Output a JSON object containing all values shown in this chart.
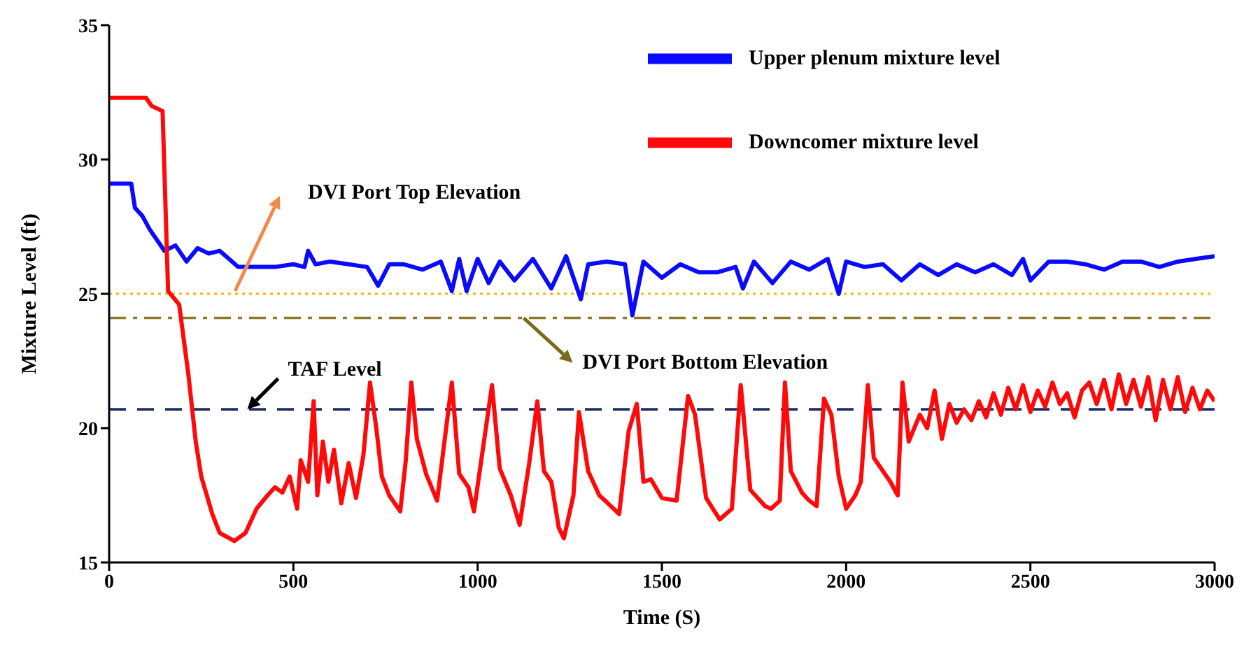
{
  "chart_data": {
    "type": "line",
    "xlabel": "Time (S)",
    "ylabel": "Mixture Level (ft)",
    "xlim": [
      0,
      3000
    ],
    "xticks": [
      0,
      500,
      1000,
      1500,
      2000,
      2500,
      3000
    ],
    "ylim": [
      15,
      35
    ],
    "yticks": [
      15,
      20,
      25,
      30,
      35
    ],
    "grid": false,
    "legend": "top right",
    "marker": "none",
    "line_style": "solid",
    "series": [
      {
        "name": "Upper plenum mixture level",
        "color": "#0a0aff",
        "x": [
          0,
          60,
          70,
          90,
          110,
          150,
          180,
          210,
          240,
          270,
          300,
          350,
          400,
          450,
          500,
          530,
          540,
          560,
          600,
          650,
          700,
          730,
          760,
          800,
          850,
          900,
          930,
          950,
          970,
          1000,
          1030,
          1060,
          1100,
          1150,
          1200,
          1240,
          1280,
          1300,
          1350,
          1400,
          1420,
          1450,
          1500,
          1550,
          1600,
          1650,
          1700,
          1720,
          1750,
          1800,
          1850,
          1900,
          1950,
          1980,
          2000,
          2050,
          2100,
          2150,
          2200,
          2250,
          2300,
          2350,
          2400,
          2450,
          2480,
          2500,
          2550,
          2600,
          2650,
          2700,
          2750,
          2800,
          2850,
          2900,
          2950,
          3000
        ],
        "values": [
          29.1,
          29.1,
          28.2,
          27.9,
          27.4,
          26.6,
          26.8,
          26.2,
          26.7,
          26.5,
          26.6,
          26.0,
          26.0,
          26.0,
          26.1,
          26.0,
          26.6,
          26.1,
          26.2,
          26.1,
          26.0,
          25.3,
          26.1,
          26.1,
          25.9,
          26.2,
          25.1,
          26.3,
          25.1,
          26.3,
          25.4,
          26.2,
          25.5,
          26.3,
          25.2,
          26.4,
          24.8,
          26.1,
          26.2,
          26.1,
          24.2,
          26.2,
          25.6,
          26.1,
          25.8,
          25.8,
          26.0,
          25.2,
          26.2,
          25.4,
          26.2,
          25.9,
          26.3,
          25.0,
          26.2,
          26.0,
          26.1,
          25.5,
          26.1,
          25.7,
          26.1,
          25.8,
          26.1,
          25.7,
          26.3,
          25.5,
          26.2,
          26.2,
          26.1,
          25.9,
          26.2,
          26.2,
          26.0,
          26.2,
          26.3,
          26.4
        ]
      },
      {
        "name": "Downcomer mixture level",
        "color": "#ff0a0a",
        "x": [
          0,
          100,
          115,
          145,
          160,
          190,
          215,
          235,
          250,
          280,
          300,
          340,
          370,
          400,
          430,
          450,
          470,
          490,
          510,
          520,
          540,
          555,
          565,
          580,
          595,
          610,
          630,
          650,
          670,
          690,
          708,
          725,
          740,
          760,
          790,
          805,
          820,
          835,
          860,
          890,
          930,
          950,
          975,
          990,
          1039,
          1060,
          1090,
          1114,
          1140,
          1162,
          1180,
          1200,
          1220,
          1234,
          1260,
          1275,
          1300,
          1330,
          1346,
          1384,
          1410,
          1432,
          1450,
          1470,
          1500,
          1540,
          1571,
          1590,
          1620,
          1657,
          1690,
          1714,
          1740,
          1780,
          1796,
          1820,
          1834,
          1850,
          1880,
          1900,
          1920,
          1940,
          1960,
          1980,
          2000,
          2025,
          2040,
          2059,
          2075,
          2100,
          2120,
          2140,
          2153,
          2170,
          2200,
          2220,
          2240,
          2260,
          2280,
          2300,
          2320,
          2340,
          2360,
          2380,
          2400,
          2420,
          2440,
          2460,
          2480,
          2500,
          2520,
          2540,
          2560,
          2580,
          2600,
          2620,
          2640,
          2660,
          2680,
          2700,
          2720,
          2740,
          2760,
          2780,
          2800,
          2820,
          2840,
          2860,
          2880,
          2900,
          2920,
          2940,
          2960,
          2980,
          3000
        ],
        "values": [
          32.3,
          32.3,
          32.0,
          31.8,
          25.1,
          24.6,
          22.0,
          19.5,
          18.2,
          16.8,
          16.1,
          15.8,
          16.1,
          17.0,
          17.5,
          17.8,
          17.6,
          18.2,
          17.0,
          18.8,
          18.0,
          21.0,
          17.5,
          19.5,
          18.0,
          19.2,
          17.2,
          18.7,
          17.4,
          19.0,
          21.7,
          20.0,
          18.2,
          17.5,
          16.9,
          18.8,
          21.7,
          19.6,
          18.3,
          17.3,
          21.7,
          18.3,
          17.8,
          16.9,
          21.6,
          18.5,
          17.5,
          16.4,
          18.7,
          21.0,
          18.4,
          18.0,
          16.3,
          15.9,
          17.5,
          20.6,
          18.4,
          17.5,
          17.3,
          16.8,
          19.9,
          20.9,
          18.0,
          18.1,
          17.4,
          17.3,
          21.2,
          20.5,
          17.4,
          16.6,
          17.0,
          21.6,
          17.7,
          17.1,
          17.0,
          17.3,
          21.7,
          18.4,
          17.6,
          17.3,
          17.1,
          21.1,
          20.5,
          18.2,
          17.0,
          17.5,
          18.0,
          21.6,
          18.9,
          18.4,
          18.0,
          17.5,
          21.7,
          19.5,
          20.5,
          20.0,
          21.4,
          19.6,
          20.9,
          20.2,
          20.7,
          20.3,
          21.0,
          20.4,
          21.3,
          20.5,
          21.5,
          20.7,
          21.6,
          20.6,
          21.4,
          20.8,
          21.7,
          20.9,
          21.3,
          20.4,
          21.4,
          21.7,
          20.9,
          21.8,
          20.7,
          22.0,
          20.9,
          21.8,
          20.8,
          21.9,
          20.3,
          21.8,
          20.7,
          21.9,
          20.6,
          21.5,
          20.7,
          21.4,
          21.0
        ]
      }
    ],
    "ref_lines": [
      {
        "axis": "y",
        "value": 25,
        "color": "#f2c21a",
        "line_style": "dotted"
      },
      {
        "axis": "y",
        "value": 24.1,
        "color": "#8c7a26",
        "line_style": "dashdot"
      },
      {
        "axis": "y",
        "value": 20.7,
        "color": "#1f2e66",
        "line_style": "dashed"
      }
    ],
    "annotations": [
      "DVI Port Top Elevation",
      {
        "text": "DVI Port Bottom Elevation",
        "x": 1125,
        "y": 24.1
      },
      {
        "text": "TAF Level",
        "x": 375,
        "y": 20.7
      }
    ]
  }
}
